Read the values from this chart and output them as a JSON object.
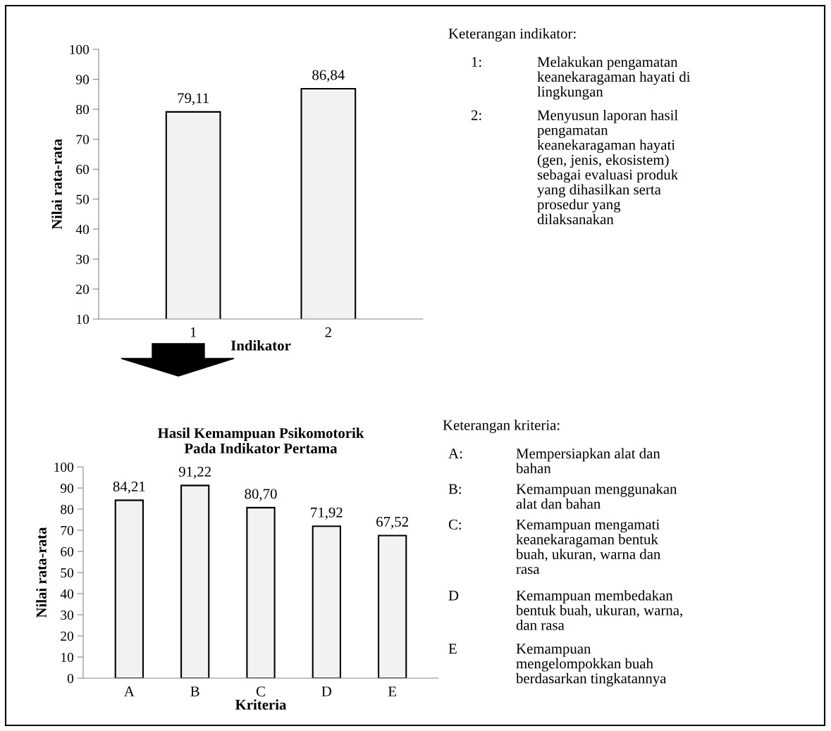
{
  "chart_data": [
    {
      "type": "bar",
      "categories": [
        "1",
        "2"
      ],
      "values": [
        79.11,
        86.84
      ],
      "value_labels": [
        "79,11",
        "86,84"
      ],
      "color": "#f2f2f2",
      "ylim": [
        10,
        100
      ],
      "yticks": [
        10,
        20,
        30,
        40,
        50,
        60,
        70,
        80,
        90,
        100
      ],
      "ylabel": "Nilai rata-rata",
      "xlabel": "Indikator"
    },
    {
      "type": "other",
      "title": "Keterangan indikator:",
      "annotations": [
        "1:",
        "Melakukan pengamatan\nkeanekaragaman hayati di\nlingkungan",
        "2:",
        "Menyusun laporan hasil\npengamatan\nkeanekaragaman hayati\n(gen, jenis, ekosistem)\nsebagai evaluasi produk\nyang dihasilkan serta\nprosedur yang\ndilaksanakan"
      ]
    },
    {
      "type": "bar",
      "title": "Hasil Kemampuan Psikomotorik\nPada Indikator Pertama",
      "categories": [
        "A",
        "B",
        "C",
        "D",
        "E"
      ],
      "values": [
        84.21,
        91.22,
        80.7,
        71.92,
        67.52
      ],
      "value_labels": [
        "84,21",
        "91,22",
        "80,70",
        "71,92",
        "67,52"
      ],
      "color": "#f2f2f2",
      "ylim": [
        0,
        100
      ],
      "yticks": [
        0,
        10,
        20,
        30,
        40,
        50,
        60,
        70,
        80,
        90,
        100
      ],
      "ylabel": "Nilai rata-rata",
      "xlabel": "Kriteria"
    },
    {
      "type": "other",
      "title": "Keterangan kriteria:",
      "annotations": [
        "A:",
        "Mempersiapkan alat dan\nbahan",
        "B:",
        "Kemampuan menggunakan\nalat dan bahan",
        "C:",
        "Kemampuan mengamati\nkeanekaragaman bentuk\nbuah, ukuran, warna dan\nrasa",
        "D",
        "Kemampuan membedakan\nbentuk buah, ukuran, warna,\ndan rasa",
        "E",
        "Kemampuan\nmengelompokkan buah\nberdasarkan tingkatannya"
      ]
    }
  ]
}
